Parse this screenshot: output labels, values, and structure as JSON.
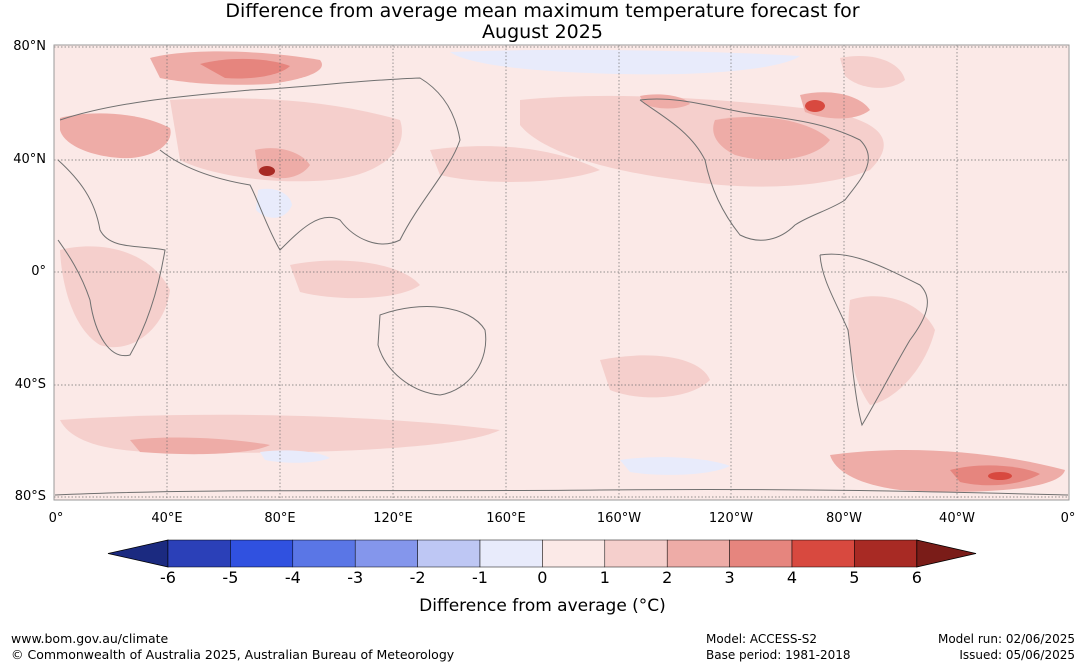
{
  "title": {
    "line1": "Difference from average mean maximum temperature forecast for",
    "line2": "August 2025"
  },
  "map": {
    "lat_labels": [
      "80°N",
      "40°N",
      "0°",
      "40°S",
      "80°S"
    ],
    "lon_labels": [
      "0°",
      "40°E",
      "80°E",
      "120°E",
      "160°E",
      "160°W",
      "120°W",
      "80°W",
      "40°W",
      "0°"
    ],
    "background_color": "#fbe9e7"
  },
  "colorbar": {
    "ticks": [
      "-6",
      "-5",
      "-4",
      "-3",
      "-2",
      "-1",
      "0",
      "1",
      "2",
      "3",
      "4",
      "5",
      "6"
    ],
    "colors": [
      "#1b2a80",
      "#2b40b8",
      "#3051e0",
      "#5a76e6",
      "#8496ec",
      "#bec7f4",
      "#e8ebfb",
      "#fbe9e7",
      "#f5cfcc",
      "#eeaca7",
      "#e6857e",
      "#d8493f",
      "#a82a24",
      "#7a1c18"
    ],
    "label": "Difference from average (°C)"
  },
  "footer": {
    "website": "www.bom.gov.au/climate",
    "copyright": "© Commonwealth of Australia 2025, Australian Bureau of Meteorology",
    "model": "Model: ACCESS-S2",
    "base_period": "Base period: 1981-2018",
    "model_run": "Model run: 02/06/2025",
    "issued": "Issued: 05/06/2025"
  }
}
